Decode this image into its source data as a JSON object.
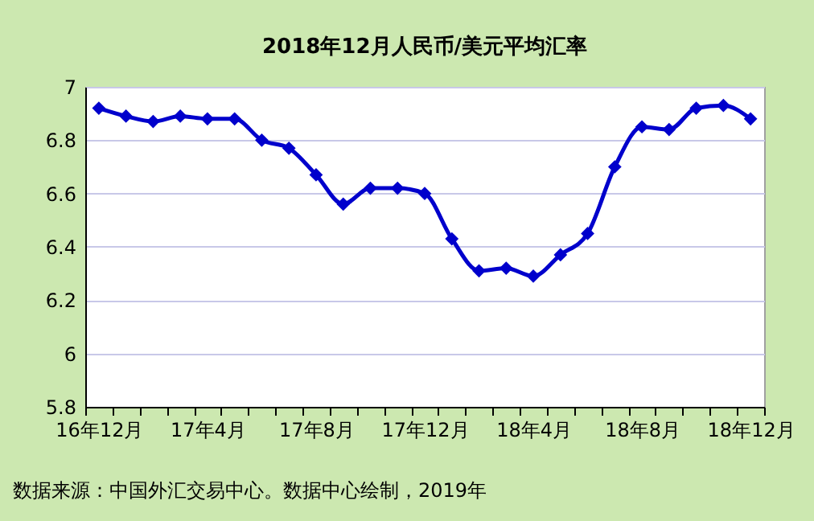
{
  "chart_data": {
    "type": "line",
    "title": "2018年12月人民币/美元平均汇率",
    "categories": [
      "16年12月",
      null,
      null,
      null,
      "17年4月",
      null,
      null,
      null,
      "17年8月",
      null,
      null,
      null,
      "17年12月",
      null,
      null,
      null,
      "18年4月",
      null,
      null,
      null,
      "18年8月",
      null,
      null,
      null,
      "18年12月"
    ],
    "series": [
      {
        "color": "#0000cc",
        "values": [
          6.92,
          6.89,
          6.87,
          6.89,
          6.88,
          6.88,
          6.8,
          6.77,
          6.67,
          6.56,
          6.62,
          6.62,
          6.6,
          6.43,
          6.31,
          6.32,
          6.29,
          6.37,
          6.45,
          6.7,
          6.85,
          6.84,
          6.92,
          6.93,
          6.88
        ]
      }
    ],
    "ylim": [
      5.8,
      7
    ],
    "yticks": [
      5.8,
      6,
      6.2,
      6.4,
      6.6,
      6.8,
      7
    ],
    "grid": "y",
    "marker": "diamond",
    "line_style": "solid",
    "annotations": [
      "数据来源：中国外汇交易中心。数据中心绘制，2019年"
    ]
  }
}
